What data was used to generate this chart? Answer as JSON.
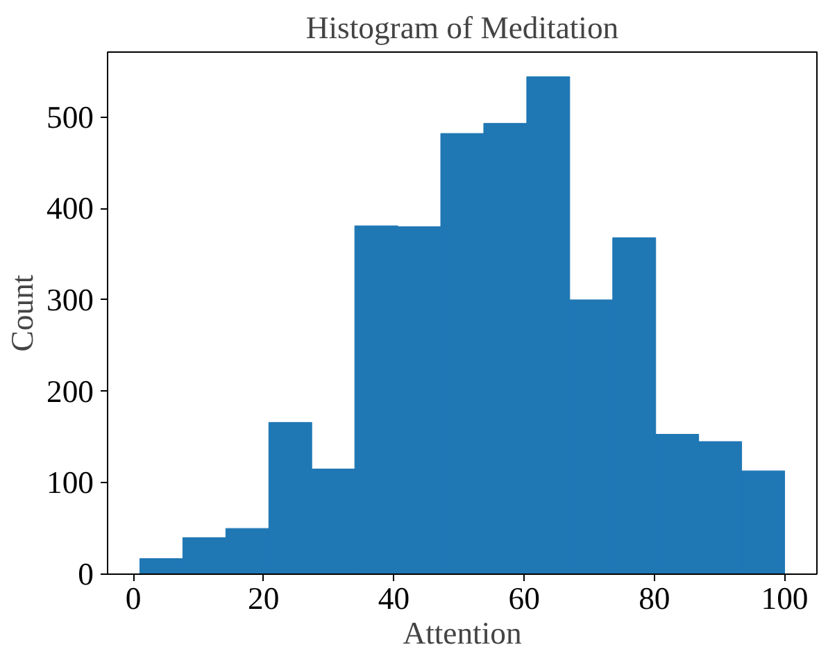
{
  "chart_data": {
    "type": "histogram",
    "title": "Histogram of Meditation",
    "xlabel": "Attention",
    "ylabel": "Count",
    "bins": [
      1,
      7.6,
      14.2,
      20.8,
      27.4,
      34,
      40.6,
      47.2,
      53.8,
      60.4,
      67,
      73.6,
      80.2,
      86.8,
      93.4,
      100
    ],
    "values": [
      17,
      40,
      50,
      166,
      115,
      381,
      380,
      482,
      493,
      544,
      300,
      368,
      153,
      145,
      113
    ],
    "color": "#1f77b4",
    "xlim": [
      -3.95,
      104.95
    ],
    "ylim": [
      0,
      571
    ],
    "xticks": [
      0,
      20,
      40,
      60,
      80,
      100
    ],
    "yticks": [
      0,
      100,
      200,
      300,
      400,
      500
    ],
    "grid": false
  }
}
